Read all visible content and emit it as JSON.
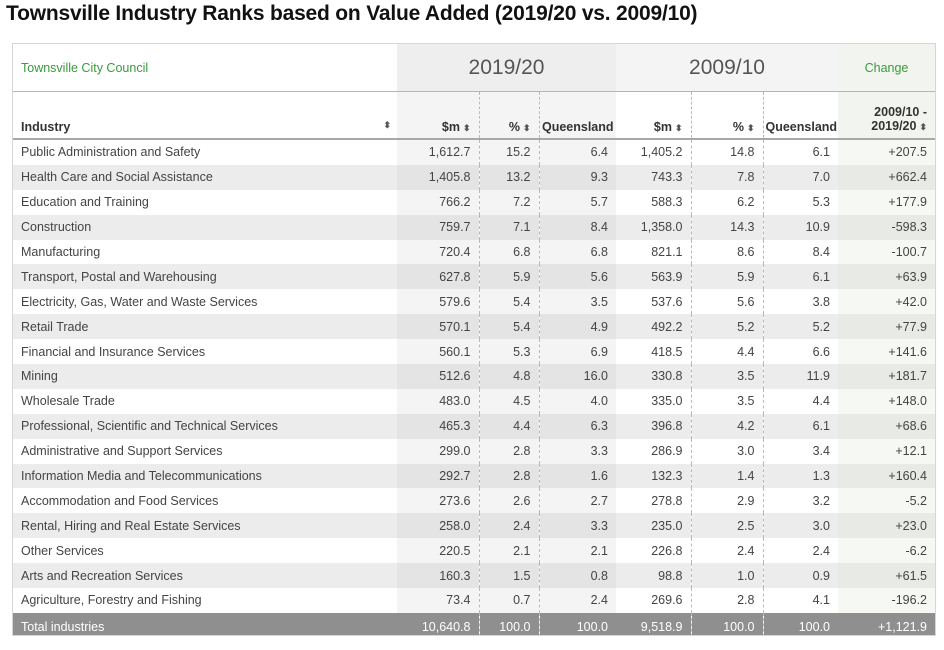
{
  "title": "Townsville Industry Ranks based on Value Added (2019/20 vs. 2009/10)",
  "band": {
    "org": "Townsville City Council",
    "period_a": "2019/20",
    "period_b": "2009/10",
    "change": "Change"
  },
  "columns": {
    "industry": "Industry",
    "m_a": "$m",
    "pct_a": "%",
    "qld_a": "Queensland",
    "m_b": "$m",
    "pct_b": "%",
    "qld_b": "Queensland",
    "change_line1": "2009/10 -",
    "change_line2": "2019/20"
  },
  "sort_glyph": "⬍",
  "rows": [
    {
      "industry": "Public Administration and Safety",
      "m_a": "1,612.7",
      "pct_a": "15.2",
      "qld_a": "6.4",
      "m_b": "1,405.2",
      "pct_b": "14.8",
      "qld_b": "6.1",
      "change": "+207.5"
    },
    {
      "industry": "Health Care and Social Assistance",
      "m_a": "1,405.8",
      "pct_a": "13.2",
      "qld_a": "9.3",
      "m_b": "743.3",
      "pct_b": "7.8",
      "qld_b": "7.0",
      "change": "+662.4"
    },
    {
      "industry": "Education and Training",
      "m_a": "766.2",
      "pct_a": "7.2",
      "qld_a": "5.7",
      "m_b": "588.3",
      "pct_b": "6.2",
      "qld_b": "5.3",
      "change": "+177.9"
    },
    {
      "industry": "Construction",
      "m_a": "759.7",
      "pct_a": "7.1",
      "qld_a": "8.4",
      "m_b": "1,358.0",
      "pct_b": "14.3",
      "qld_b": "10.9",
      "change": "-598.3"
    },
    {
      "industry": "Manufacturing",
      "m_a": "720.4",
      "pct_a": "6.8",
      "qld_a": "6.8",
      "m_b": "821.1",
      "pct_b": "8.6",
      "qld_b": "8.4",
      "change": "-100.7"
    },
    {
      "industry": "Transport, Postal and Warehousing",
      "m_a": "627.8",
      "pct_a": "5.9",
      "qld_a": "5.6",
      "m_b": "563.9",
      "pct_b": "5.9",
      "qld_b": "6.1",
      "change": "+63.9"
    },
    {
      "industry": "Electricity, Gas, Water and Waste Services",
      "m_a": "579.6",
      "pct_a": "5.4",
      "qld_a": "3.5",
      "m_b": "537.6",
      "pct_b": "5.6",
      "qld_b": "3.8",
      "change": "+42.0"
    },
    {
      "industry": "Retail Trade",
      "m_a": "570.1",
      "pct_a": "5.4",
      "qld_a": "4.9",
      "m_b": "492.2",
      "pct_b": "5.2",
      "qld_b": "5.2",
      "change": "+77.9"
    },
    {
      "industry": "Financial and Insurance Services",
      "m_a": "560.1",
      "pct_a": "5.3",
      "qld_a": "6.9",
      "m_b": "418.5",
      "pct_b": "4.4",
      "qld_b": "6.6",
      "change": "+141.6"
    },
    {
      "industry": "Mining",
      "m_a": "512.6",
      "pct_a": "4.8",
      "qld_a": "16.0",
      "m_b": "330.8",
      "pct_b": "3.5",
      "qld_b": "11.9",
      "change": "+181.7"
    },
    {
      "industry": "Wholesale Trade",
      "m_a": "483.0",
      "pct_a": "4.5",
      "qld_a": "4.0",
      "m_b": "335.0",
      "pct_b": "3.5",
      "qld_b": "4.4",
      "change": "+148.0"
    },
    {
      "industry": "Professional, Scientific and Technical Services",
      "m_a": "465.3",
      "pct_a": "4.4",
      "qld_a": "6.3",
      "m_b": "396.8",
      "pct_b": "4.2",
      "qld_b": "6.1",
      "change": "+68.6"
    },
    {
      "industry": "Administrative and Support Services",
      "m_a": "299.0",
      "pct_a": "2.8",
      "qld_a": "3.3",
      "m_b": "286.9",
      "pct_b": "3.0",
      "qld_b": "3.4",
      "change": "+12.1"
    },
    {
      "industry": "Information Media and Telecommunications",
      "m_a": "292.7",
      "pct_a": "2.8",
      "qld_a": "1.6",
      "m_b": "132.3",
      "pct_b": "1.4",
      "qld_b": "1.3",
      "change": "+160.4"
    },
    {
      "industry": "Accommodation and Food Services",
      "m_a": "273.6",
      "pct_a": "2.6",
      "qld_a": "2.7",
      "m_b": "278.8",
      "pct_b": "2.9",
      "qld_b": "3.2",
      "change": "-5.2"
    },
    {
      "industry": "Rental, Hiring and Real Estate Services",
      "m_a": "258.0",
      "pct_a": "2.4",
      "qld_a": "3.3",
      "m_b": "235.0",
      "pct_b": "2.5",
      "qld_b": "3.0",
      "change": "+23.0"
    },
    {
      "industry": "Other Services",
      "m_a": "220.5",
      "pct_a": "2.1",
      "qld_a": "2.1",
      "m_b": "226.8",
      "pct_b": "2.4",
      "qld_b": "2.4",
      "change": "-6.2"
    },
    {
      "industry": "Arts and Recreation Services",
      "m_a": "160.3",
      "pct_a": "1.5",
      "qld_a": "0.8",
      "m_b": "98.8",
      "pct_b": "1.0",
      "qld_b": "0.9",
      "change": "+61.5"
    },
    {
      "industry": "Agriculture, Forestry and Fishing",
      "m_a": "73.4",
      "pct_a": "0.7",
      "qld_a": "2.4",
      "m_b": "269.6",
      "pct_b": "2.8",
      "qld_b": "4.1",
      "change": "-196.2"
    }
  ],
  "total": {
    "industry": "Total industries",
    "m_a": "10,640.8",
    "pct_a": "100.0",
    "qld_a": "100.0",
    "m_b": "9,518.9",
    "pct_b": "100.0",
    "qld_b": "100.0",
    "change": "+1,121.9"
  }
}
